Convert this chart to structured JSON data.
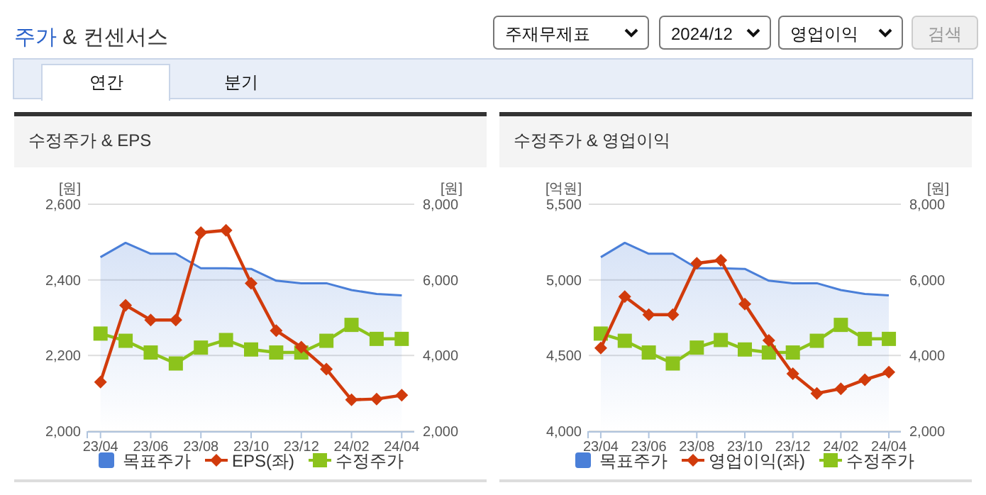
{
  "chart_data": [
    {
      "type": "other",
      "title": "주가 & 컨센서스",
      "annotations": [
        "주재무제표",
        "2024/12",
        "영업이익",
        "검색",
        "연간",
        "분기"
      ]
    },
    {
      "type": "line",
      "title": "수정주가 & EPS",
      "ylabel": "[원]",
      "y2label": "[원]",
      "categories": [
        "23/04",
        null,
        "23/06",
        null,
        "23/08",
        null,
        "23/10",
        null,
        "23/12",
        null,
        "24/02",
        null,
        "24/04"
      ],
      "ylim": [
        2000,
        2600
      ],
      "yticks": [
        {
          "value": 2000,
          "label": "2,000"
        },
        {
          "value": 2200,
          "label": "2,200"
        },
        {
          "value": 2400,
          "label": "2,400"
        },
        {
          "value": 2600,
          "label": "2,600"
        }
      ],
      "y2lim": [
        2000,
        8000
      ],
      "y2ticks": [
        {
          "value": 2000,
          "label": "2,000"
        },
        {
          "value": 4000,
          "label": "4,000"
        },
        {
          "value": 6000,
          "label": "6,000"
        },
        {
          "value": 8000,
          "label": "8,000"
        }
      ],
      "grid": "y",
      "legend": "bottom",
      "series": [
        {
          "name": "목표주가",
          "type": "area",
          "axis": "y2",
          "color": "#4a7fd8",
          "values": [
            6600,
            6980,
            6690,
            6690,
            6310,
            6310,
            6290,
            5980,
            5910,
            5910,
            5730,
            5630,
            5590
          ]
        },
        {
          "name": "EPS(좌)",
          "type": "line",
          "color": "#d13b0c",
          "marker": "diamond",
          "values": [
            2130,
            2333,
            2294,
            2294,
            2525,
            2531,
            2391,
            2266,
            2222,
            2164,
            2083,
            2085,
            2095
          ]
        },
        {
          "name": "수정주가",
          "type": "line",
          "axis": "y2",
          "color": "#8cc31c",
          "marker": "square",
          "values": [
            4580,
            4390,
            4080,
            3790,
            4210,
            4410,
            4160,
            4080,
            4080,
            4390,
            4810,
            4440,
            4440
          ]
        }
      ]
    },
    {
      "type": "line",
      "title": "수정주가 & 영업이익",
      "ylabel": "[억원]",
      "y2label": "[원]",
      "categories": [
        "23/04",
        null,
        "23/06",
        null,
        "23/08",
        null,
        "23/10",
        null,
        "23/12",
        null,
        "24/02",
        null,
        "24/04"
      ],
      "ylim": [
        4000,
        5500
      ],
      "yticks": [
        {
          "value": 4000,
          "label": "4,000"
        },
        {
          "value": 4500,
          "label": "4,500"
        },
        {
          "value": 5000,
          "label": "5,000"
        },
        {
          "value": 5500,
          "label": "5,500"
        }
      ],
      "y2lim": [
        2000,
        8000
      ],
      "y2ticks": [
        {
          "value": 2000,
          "label": "2,000"
        },
        {
          "value": 4000,
          "label": "4,000"
        },
        {
          "value": 6000,
          "label": "6,000"
        },
        {
          "value": 8000,
          "label": "8,000"
        }
      ],
      "grid": "y",
      "legend": "bottom",
      "series": [
        {
          "name": "목표주가",
          "type": "area",
          "axis": "y2",
          "color": "#4a7fd8",
          "values": [
            6600,
            6980,
            6690,
            6690,
            6310,
            6310,
            6290,
            5980,
            5910,
            5910,
            5730,
            5630,
            5590
          ]
        },
        {
          "name": "영업이익(좌)",
          "type": "line",
          "color": "#d13b0c",
          "marker": "diamond",
          "values": [
            4550,
            4890,
            4770,
            4770,
            5110,
            5130,
            4840,
            4600,
            4380,
            4250,
            4280,
            4340,
            4390
          ]
        },
        {
          "name": "수정주가",
          "type": "line",
          "axis": "y2",
          "color": "#8cc31c",
          "marker": "square",
          "values": [
            4580,
            4390,
            4080,
            3790,
            4210,
            4410,
            4160,
            4080,
            4080,
            4390,
            4810,
            4440,
            4440
          ]
        }
      ]
    }
  ]
}
